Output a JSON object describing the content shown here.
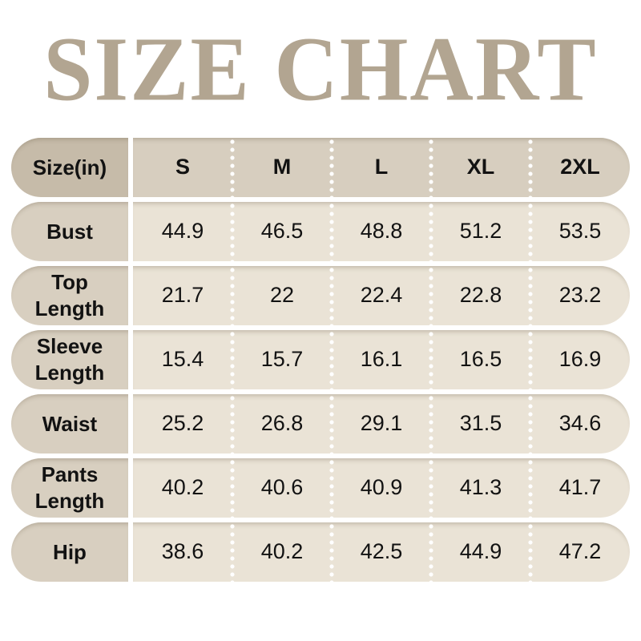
{
  "page": {
    "title": "SIZE CHART"
  },
  "colors": {
    "title_color": "#b2a591",
    "header_label_bg": "#c6bba9",
    "header_values_bg": "#d7cebf",
    "row_label_bg": "#d8cfc0",
    "row_values_bg": "#eae3d6",
    "text_color": "#121212",
    "divider_color": "#ffffff",
    "page_bg": "#ffffff"
  },
  "table": {
    "header": {
      "label": "Size(in)",
      "columns": [
        "S",
        "M",
        "L",
        "XL",
        "2XL"
      ]
    },
    "rows": [
      {
        "label": "Bust",
        "values": [
          "44.9",
          "46.5",
          "48.8",
          "51.2",
          "53.5"
        ]
      },
      {
        "label": "Top Length",
        "values": [
          "21.7",
          "22",
          "22.4",
          "22.8",
          "23.2"
        ]
      },
      {
        "label": "Sleeve Length",
        "values": [
          "15.4",
          "15.7",
          "16.1",
          "16.5",
          "16.9"
        ]
      },
      {
        "label": "Waist",
        "values": [
          "25.2",
          "26.8",
          "29.1",
          "31.5",
          "34.6"
        ]
      },
      {
        "label": "Pants Length",
        "values": [
          "40.2",
          "40.6",
          "40.9",
          "41.3",
          "41.7"
        ]
      },
      {
        "label": "Hip",
        "values": [
          "38.6",
          "40.2",
          "42.5",
          "44.9",
          "47.2"
        ]
      }
    ]
  },
  "chart_data": {
    "type": "table",
    "title": "SIZE CHART",
    "columns": [
      "Size(in)",
      "S",
      "M",
      "L",
      "XL",
      "2XL"
    ],
    "rows": [
      [
        "Bust",
        44.9,
        46.5,
        48.8,
        51.2,
        53.5
      ],
      [
        "Top Length",
        21.7,
        22,
        22.4,
        22.8,
        23.2
      ],
      [
        "Sleeve Length",
        15.4,
        15.7,
        16.1,
        16.5,
        16.9
      ],
      [
        "Waist",
        25.2,
        26.8,
        29.1,
        31.5,
        34.6
      ],
      [
        "Pants Length",
        40.2,
        40.6,
        40.9,
        41.3,
        41.7
      ],
      [
        "Hip",
        38.6,
        40.2,
        42.5,
        44.9,
        47.2
      ]
    ]
  }
}
